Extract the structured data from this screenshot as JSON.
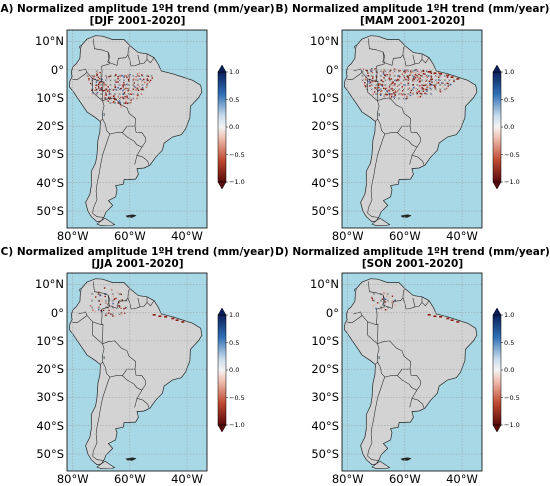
{
  "panels": [
    {
      "id": "A",
      "title": "A) Normalized amplitude 1ºH trend (mm/year)",
      "subtitle": "[DJF 2001-2020]"
    },
    {
      "id": "B",
      "title": "B) Normalized amplitude 1ºH trend (mm/year)",
      "subtitle": "[MAM 2001-2020]"
    },
    {
      "id": "C",
      "title": "C) Normalized amplitude 1ºH trend (mm/year)",
      "subtitle": "[JJA 2001-2020]"
    },
    {
      "id": "D",
      "title": "D) Normalized amplitude 1ºH trend (mm/year)",
      "subtitle": "[SON 2001-2020]"
    }
  ],
  "lat_ticks": [
    "10°N",
    "0°",
    "10°S",
    "20°S",
    "30°S",
    "40°S",
    "50°S"
  ],
  "lon_ticks": [
    "80°W",
    "60°W",
    "40°W"
  ],
  "colorbar_ticks": [
    "1.0",
    "0.5",
    "0.0",
    "−0.5",
    "−1.0"
  ],
  "colors": {
    "ocean": "#a8d8e6",
    "land": "#d3d3d3",
    "border": "#222222",
    "positive": "#1f3f8f",
    "negative": "#8b1a10",
    "grid": "#9a9a9a"
  }
}
